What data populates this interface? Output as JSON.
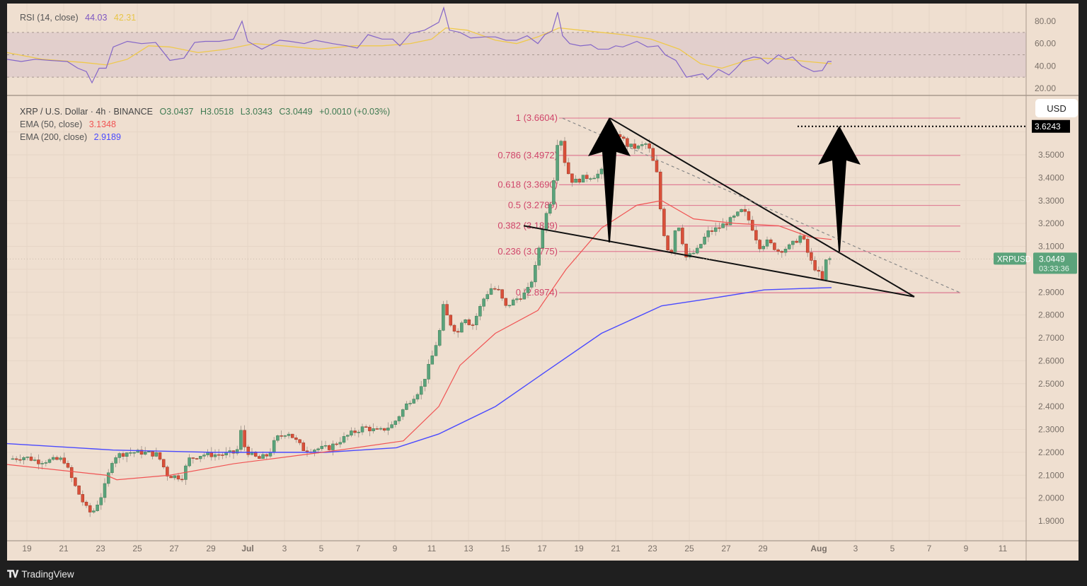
{
  "branding": {
    "logo_text": "TradingView",
    "logo_mark": "TV"
  },
  "rsi_legend": {
    "title": "RSI (14, close)",
    "rsi_value": "44.03",
    "rsi_ma_value": "42.31",
    "rsi_color": "#7e57c2",
    "ma_color": "#f2c94c"
  },
  "price_legend": {
    "symbol": "XRP / U.S. Dollar · 4h · BINANCE",
    "open": "O3.0437",
    "high": "H3.0518",
    "low": "L3.0343",
    "close": "C3.0449",
    "change": "+0.0010 (+0.03%)",
    "ema50_label": "EMA (50, close)",
    "ema50_value": "3.1348",
    "ema50_color": "#f05454",
    "ema200_label": "EMA (200, close)",
    "ema200_value": "2.9189",
    "ema200_color": "#4a4aff"
  },
  "currency_button": "USD",
  "price_tag": {
    "symbol": "XRPUSD",
    "price": "3.0449",
    "countdown": "03:33:36",
    "color": "#5ba37b"
  },
  "target_tag": {
    "price": "3.6243"
  },
  "chart_data": {
    "type": "candlestick",
    "title": "XRP / U.S. Dollar · 4h · BINANCE",
    "xlabel": "",
    "ylabel": "USD",
    "x_ticks": [
      {
        "label": "19",
        "x": 38
      },
      {
        "label": "21",
        "x": 90
      },
      {
        "label": "23",
        "x": 142
      },
      {
        "label": "25",
        "x": 194
      },
      {
        "label": "27",
        "x": 246
      },
      {
        "label": "29",
        "x": 298
      },
      {
        "label": "Jul",
        "x": 350,
        "bold": true
      },
      {
        "label": "3",
        "x": 402
      },
      {
        "label": "5",
        "x": 454
      },
      {
        "label": "7",
        "x": 506
      },
      {
        "label": "9",
        "x": 558
      },
      {
        "label": "11",
        "x": 610
      },
      {
        "label": "13",
        "x": 662
      },
      {
        "label": "15",
        "x": 714
      },
      {
        "label": "17",
        "x": 766
      },
      {
        "label": "19",
        "x": 818
      },
      {
        "label": "21",
        "x": 870
      },
      {
        "label": "23",
        "x": 922
      },
      {
        "label": "25",
        "x": 974
      },
      {
        "label": "27",
        "x": 1026
      },
      {
        "label": "29",
        "x": 1078
      },
      {
        "label": "Aug",
        "x": 1157,
        "bold": true
      },
      {
        "label": "3",
        "x": 1209
      },
      {
        "label": "5",
        "x": 1261
      },
      {
        "label": "7",
        "x": 1313
      },
      {
        "label": "9",
        "x": 1365
      },
      {
        "label": "11",
        "x": 1417
      }
    ],
    "price_axis": {
      "ticks": [
        "3.5000",
        "3.4000",
        "3.3000",
        "3.2000",
        "3.1000",
        "2.9000",
        "2.8000",
        "2.7000",
        "2.6000",
        "2.5000",
        "2.4000",
        "2.3000",
        "2.2000",
        "2.1000",
        "2.0000",
        "1.9000"
      ],
      "ylim": [
        1.84,
        3.72
      ]
    },
    "rsi_axis": {
      "ticks": [
        "80.00",
        "60.00",
        "40.00",
        "20.00"
      ],
      "ylim": [
        12,
        95
      ],
      "bands": [
        30,
        50,
        70
      ]
    },
    "fib_levels": [
      {
        "ratio": "1",
        "price": "3.6604",
        "label": "1 (3.6604)"
      },
      {
        "ratio": "0.786",
        "price": "3.4972",
        "label": "0.786 (3.4972)"
      },
      {
        "ratio": "0.618",
        "price": "3.3690",
        "label": "0.618 (3.3690)"
      },
      {
        "ratio": "0.5",
        "price": "3.2789",
        "label": "0.5 (3.2789)"
      },
      {
        "ratio": "0.382",
        "price": "3.1889",
        "label": "0.382 (3.1889)"
      },
      {
        "ratio": "0.236",
        "price": "3.0775",
        "label": "0.236 (3.0775)"
      },
      {
        "ratio": "0",
        "price": "2.8974",
        "label": "0 (2.8974)"
      }
    ],
    "series": [
      {
        "name": "XRPUSD close (approx, key swing points)",
        "points": [
          [
            "Jun 18",
            2.17
          ],
          [
            "Jun 20",
            2.18
          ],
          [
            "Jun 22",
            1.95
          ],
          [
            "Jun 23",
            2.02
          ],
          [
            "Jun 24",
            2.18
          ],
          [
            "Jun 26",
            2.19
          ],
          [
            "Jun 27",
            2.09
          ],
          [
            "Jun 28",
            2.18
          ],
          [
            "Jul 1",
            2.19
          ],
          [
            "Jul 2",
            2.28
          ],
          [
            "Jul 3",
            2.19
          ],
          [
            "Jul 5",
            2.22
          ],
          [
            "Jul 8",
            2.31
          ],
          [
            "Jul 9",
            2.42
          ],
          [
            "Jul 10",
            2.6
          ],
          [
            "Jul 11",
            2.84
          ],
          [
            "Jul 12",
            2.72
          ],
          [
            "Jul 14",
            2.93
          ],
          [
            "Jul 15",
            2.84
          ],
          [
            "Jul 16",
            3.0
          ],
          [
            "Jul 17",
            3.28
          ],
          [
            "Jul 18",
            3.6
          ],
          [
            "Jul 19",
            3.4
          ],
          [
            "Jul 21",
            3.55
          ],
          [
            "Jul 22",
            3.52
          ],
          [
            "Jul 23",
            3.3
          ],
          [
            "Jul 24",
            3.05
          ],
          [
            "Jul 25",
            3.02
          ],
          [
            "Jul 26",
            3.18
          ],
          [
            "Jul 28",
            3.27
          ],
          [
            "Jul 29",
            3.1
          ],
          [
            "Jul 30",
            3.13
          ],
          [
            "Jul 31",
            2.98
          ],
          [
            "Aug 1",
            2.96
          ],
          [
            "Aug 1",
            3.0449
          ]
        ]
      },
      {
        "name": "EMA (50, close)",
        "last": 3.1348
      },
      {
        "name": "EMA (200, close)",
        "last": 2.9189
      },
      {
        "name": "RSI (14, close)",
        "last": 44.03
      },
      {
        "name": "RSI MA",
        "last": 42.31
      }
    ],
    "annotations": [
      "Falling wedge: upper trendline from 3.66 (Jul 21) to ~2.88 (Aug 6)",
      "Falling wedge: lower trendline from 3.19 (Jul 16) to ~2.88 (Aug 6)",
      "Upward arrow at Jul 20 breakout measuring wedge height",
      "Upward arrow projected from breakout to target 3.6243",
      "Dotted target line at 3.6243"
    ],
    "grid": true,
    "legend_position": "top-left"
  }
}
